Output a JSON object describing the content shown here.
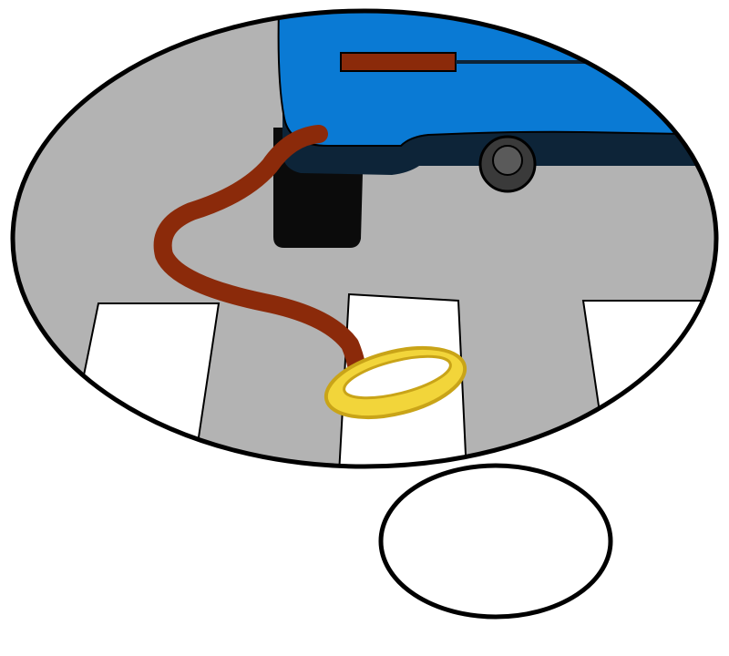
{
  "scene": {
    "colors": {
      "background": "#ffffff",
      "ground": "#b3b3b3",
      "outline": "#000000",
      "crosswalk_stripe": "#ffffff",
      "vehicle_body": "#0a7ad4",
      "vehicle_trim": "#0d2438",
      "vehicle_shadow": "#0b0b0b",
      "wheel": "#3a3a3a",
      "wheel_hub": "#5a5a5a",
      "cable": "#8b2a0a",
      "ring": "#f2d53a",
      "ring_shade": "#c9a418"
    },
    "icons": {
      "main_bubble": "thought-bubble-icon",
      "small_bubble": "thought-bubble-tail-icon",
      "vehicle": "vehicle-icon",
      "cable": "leash-cable-icon",
      "ring": "gold-ring-icon"
    }
  }
}
